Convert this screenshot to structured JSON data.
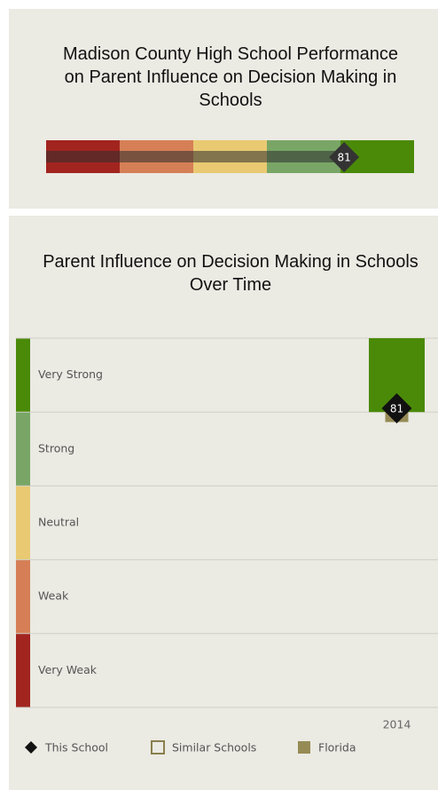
{
  "chart_data": [
    {
      "type": "gauge",
      "title": "Madison County High School Performance on Parent Influence on Decision Making in Schools",
      "value": 81,
      "xlim": [
        0,
        100
      ],
      "bands": [
        {
          "color": "#a2241f",
          "range": [
            0,
            20
          ]
        },
        {
          "color": "#d67f56",
          "range": [
            20,
            40
          ]
        },
        {
          "color": "#e9ca72",
          "range": [
            40,
            60
          ]
        },
        {
          "color": "#79a666",
          "range": [
            60,
            80
          ]
        },
        {
          "color": "#4a8a08",
          "range": [
            80,
            100
          ]
        }
      ]
    },
    {
      "type": "band_bar",
      "title": "Parent Influence on Decision Making in Schools Over Time",
      "categories": [
        "2014"
      ],
      "ylim": [
        0,
        100
      ],
      "bands": [
        {
          "name": "Very Strong",
          "color": "#4a8a08",
          "range": [
            80,
            100
          ]
        },
        {
          "name": "Strong",
          "color": "#79a666",
          "range": [
            60,
            80
          ]
        },
        {
          "name": "Neutral",
          "color": "#e9ca72",
          "range": [
            40,
            60
          ]
        },
        {
          "name": "Weak",
          "color": "#d67f56",
          "range": [
            20,
            40
          ]
        },
        {
          "name": "Very Weak",
          "color": "#a2241f",
          "range": [
            0,
            20
          ]
        }
      ],
      "series": [
        {
          "name": "This School",
          "marker": "diamond",
          "color": "#111111",
          "values": [
            81
          ]
        },
        {
          "name": "Similar Schools",
          "marker": "hollow-square",
          "color": "#8a7f4e",
          "values": [
            null
          ]
        },
        {
          "name": "Florida",
          "marker": "square",
          "color": "#968b55",
          "values": [
            79
          ]
        }
      ]
    }
  ]
}
